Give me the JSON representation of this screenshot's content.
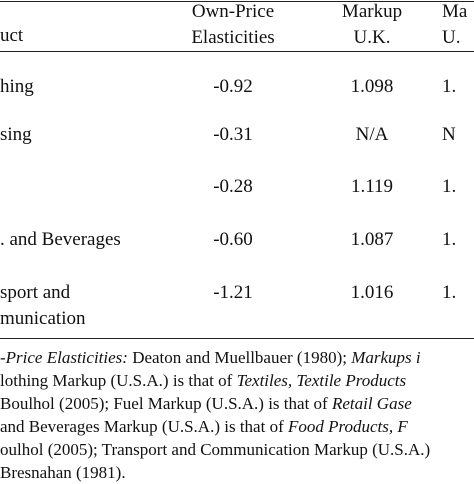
{
  "table": {
    "header": [
      "uct",
      "Own-Price\nElasticities",
      "Markup\nU.K.",
      "Ma\nU."
    ],
    "rows": [
      [
        "hing",
        "-0.92",
        "1.098",
        "1."
      ],
      [
        "sing",
        "-0.31",
        "N/A",
        "N"
      ],
      [
        "",
        "-0.28",
        "1.119",
        "1."
      ],
      [
        ". and Beverages",
        "-0.60",
        "1.087",
        "1."
      ],
      [
        "sport and\nmunication",
        "-1.21",
        "1.016",
        "1."
      ]
    ]
  },
  "notes": [
    [
      "-Price Elasticities:",
      " Deaton and Muellbauer (1980); ",
      "Markups i"
    ],
    [
      "lothing Markup (U.S.A.) is that of ",
      "Textiles, Textile Products"
    ],
    [
      "Boulhol (2005); Fuel Markup (U.S.A.) is that of ",
      "Retail Gase"
    ],
    [
      "and Beverages Markup (U.S.A.) is that of ",
      "Food Products, F"
    ],
    [
      "oulhol (2005); Transport and Communication Markup (U.S.A.)"
    ],
    [
      "Bresnahan (1981)."
    ]
  ]
}
